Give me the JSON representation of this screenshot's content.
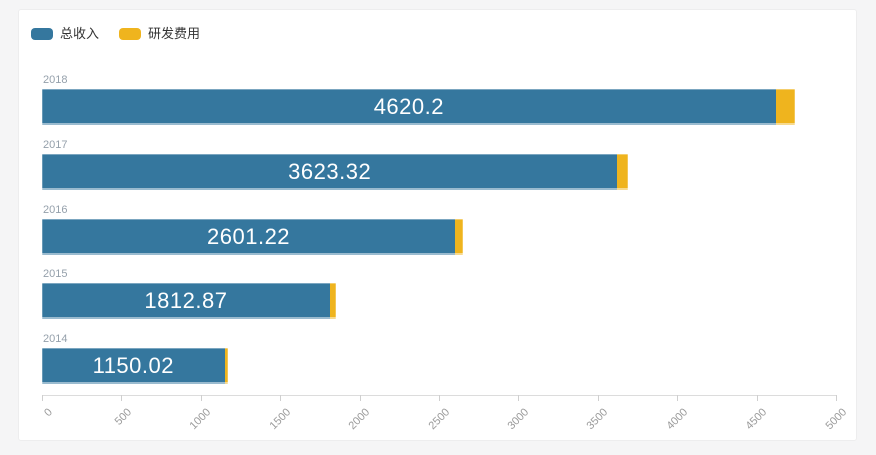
{
  "page": {
    "background": "#f5f5f6",
    "card_background": "#ffffff"
  },
  "legend": {
    "items": [
      {
        "label": "总收入",
        "color": "#35779E"
      },
      {
        "label": "研发费用",
        "color": "#EFB41E"
      }
    ]
  },
  "chart_data": {
    "type": "bar",
    "orientation": "horizontal",
    "stacked": true,
    "title": "",
    "categories": [
      "2018",
      "2017",
      "2016",
      "2015",
      "2014"
    ],
    "series": [
      {
        "name": "总收入",
        "color": "#35779E",
        "values": [
          4620.2,
          3623.32,
          2601.22,
          1812.87,
          1150.02
        ],
        "value_labels": [
          "4620.2",
          "3623.32",
          "2601.22",
          "1812.87",
          "1150.02"
        ],
        "label_position": "inside-center",
        "label_color": "#ffffff"
      },
      {
        "name": "研发费用",
        "color": "#EFB41E",
        "values": [
          120,
          70,
          52,
          40,
          20
        ],
        "value_labels": [
          "",
          "",
          "",
          "",
          ""
        ],
        "note": "values not labeled in chart; estimated from bar lengths"
      }
    ],
    "xlim": [
      0,
      5000
    ],
    "x_tick_labels": [
      "0",
      "500",
      "1000",
      "1500",
      "2000",
      "2500",
      "3000",
      "3500",
      "4000",
      "4500",
      "5000"
    ],
    "axis_label_rotation": 45,
    "grid": false,
    "legend_position": "top-left"
  }
}
